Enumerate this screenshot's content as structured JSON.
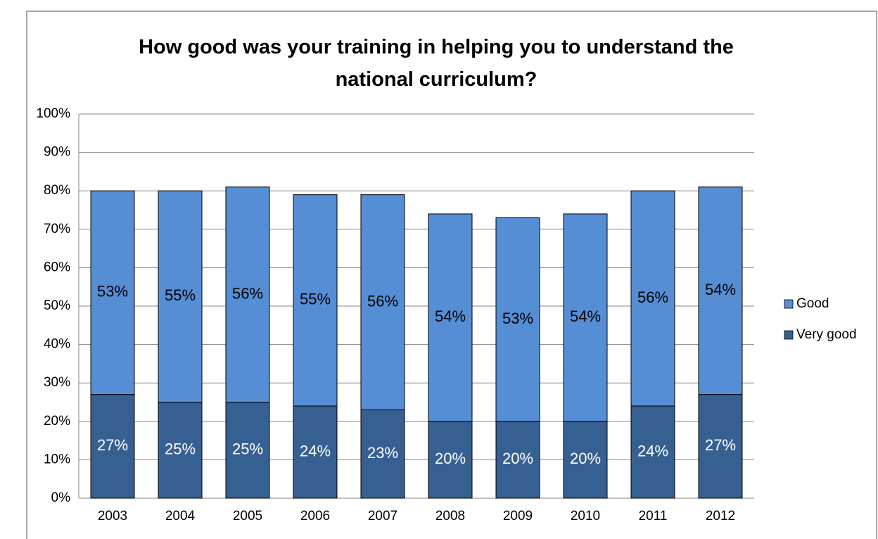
{
  "chart_data": {
    "type": "stacked-bar",
    "title": "How good was your training in helping you to understand the national curriculum?",
    "categories": [
      "2003",
      "2004",
      "2005",
      "2006",
      "2007",
      "2008",
      "2009",
      "2010",
      "2011",
      "2012"
    ],
    "series": [
      {
        "name": "Very good",
        "color": "#376092",
        "values": [
          27,
          25,
          25,
          24,
          23,
          20,
          20,
          20,
          24,
          27
        ],
        "value_labels": [
          "27%",
          "25%",
          "25%",
          "24%",
          "23%",
          "20%",
          "20%",
          "20%",
          "24%",
          "27%"
        ]
      },
      {
        "name": "Good",
        "color": "#558ed5",
        "values": [
          53,
          55,
          56,
          55,
          56,
          54,
          53,
          54,
          56,
          54
        ],
        "value_labels": [
          "53%",
          "55%",
          "56%",
          "55%",
          "56%",
          "54%",
          "53%",
          "54%",
          "56%",
          "54%"
        ]
      }
    ],
    "ylim": [
      0,
      100
    ],
    "yticks": [
      {
        "value": 0,
        "label": "0%"
      },
      {
        "value": 10,
        "label": "10%"
      },
      {
        "value": 20,
        "label": "20%"
      },
      {
        "value": 30,
        "label": "30%"
      },
      {
        "value": 40,
        "label": "40%"
      },
      {
        "value": 50,
        "label": "50%"
      },
      {
        "value": 60,
        "label": "60%"
      },
      {
        "value": 70,
        "label": "70%"
      },
      {
        "value": 80,
        "label": "80%"
      },
      {
        "value": 90,
        "label": "90%"
      },
      {
        "value": 100,
        "label": "100%"
      }
    ],
    "grid": true,
    "legend": "right"
  }
}
